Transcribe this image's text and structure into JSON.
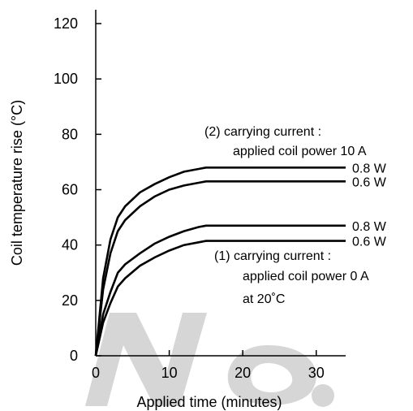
{
  "chart_data": {
    "type": "line",
    "xlabel": "Applied time (minutes)",
    "ylabel": "Coil temperature rise (°C)",
    "xlim": [
      0,
      34
    ],
    "ylim": [
      0,
      125
    ],
    "x_ticks": [
      0,
      10,
      20,
      30
    ],
    "y_ticks": [
      0,
      20,
      40,
      60,
      80,
      100,
      120
    ],
    "grid": false,
    "series": [
      {
        "name": "0.8 W",
        "group": "(2)",
        "x": [
          0,
          1,
          2,
          3,
          4,
          6,
          8,
          10,
          12,
          14,
          15,
          34
        ],
        "y": [
          0,
          28,
          42,
          50,
          54,
          59,
          62,
          64.5,
          66.5,
          67.5,
          68,
          68
        ]
      },
      {
        "name": "0.6 W",
        "group": "(2)",
        "x": [
          0,
          1,
          2,
          3,
          4,
          6,
          8,
          10,
          12,
          14,
          15,
          34
        ],
        "y": [
          0,
          24,
          37,
          45,
          49,
          54,
          57.5,
          60,
          61.5,
          62.5,
          63,
          63
        ]
      },
      {
        "name": "0.8 W",
        "group": "(1)",
        "x": [
          0,
          1,
          2,
          3,
          4,
          6,
          8,
          10,
          12,
          14,
          15,
          34
        ],
        "y": [
          0,
          15,
          23,
          30,
          33,
          37,
          40.5,
          43,
          45,
          46.5,
          47,
          47
        ]
      },
      {
        "name": "0.6 W",
        "group": "(1)",
        "x": [
          0,
          1,
          2,
          3,
          4,
          6,
          8,
          10,
          12,
          14,
          15,
          34
        ],
        "y": [
          0,
          12,
          19,
          25,
          28,
          32.5,
          35.5,
          38,
          40,
          41,
          41.5,
          41.5
        ]
      }
    ],
    "annotations": {
      "group2_line1": "(2) carrying current :",
      "group2_line2": "applied coil power 10 A",
      "group1_line1": "(1) carrying current :",
      "group1_line2": "applied coil power 0 A",
      "group1_line3": "at 20˚C"
    },
    "watermark": "No"
  }
}
